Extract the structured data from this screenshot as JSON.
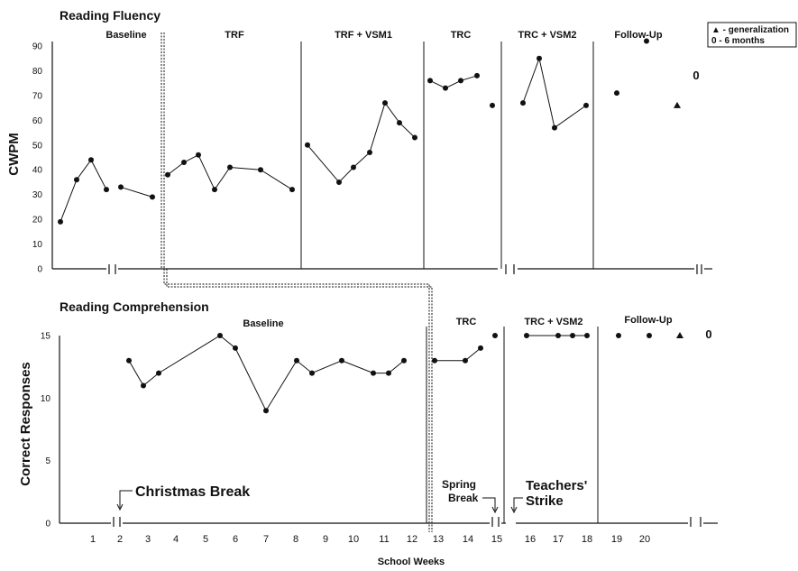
{
  "chart_data": [
    {
      "type": "line",
      "title": "Reading Fluency",
      "ylabel": "CWPM",
      "ylim": [
        0,
        90
      ],
      "yticks": [
        0,
        10,
        20,
        30,
        40,
        50,
        60,
        70,
        80,
        90
      ],
      "phases": [
        "Baseline",
        "TRF",
        "TRF + VSM1",
        "TRC",
        "TRC + VSM2",
        "Follow-Up"
      ],
      "series": [
        {
          "values": [
            19,
            36,
            44,
            32
          ]
        },
        {
          "values": [
            33,
            29
          ]
        },
        {
          "values": [
            38,
            43,
            46,
            32,
            41,
            40,
            32
          ]
        },
        {
          "values": [
            50,
            35,
            41,
            47,
            67,
            59,
            53
          ]
        },
        {
          "values": [
            76,
            73,
            76,
            78
          ]
        },
        {
          "values": [
            66
          ]
        },
        {
          "values": [
            67,
            85,
            57,
            66
          ]
        },
        {
          "values": [
            71
          ]
        },
        {
          "values": [
            92
          ]
        }
      ],
      "generalization": [
        {
          "value": 66
        }
      ],
      "zero_label": "0"
    },
    {
      "type": "line",
      "title": "Reading Comprehension",
      "ylabel": "Correct Responses",
      "xlabel": "School Weeks",
      "ylim": [
        0,
        15
      ],
      "yticks": [
        0,
        5,
        10,
        15
      ],
      "xticks": [
        "1",
        "2",
        "3",
        "4",
        "5",
        "6",
        "7",
        "8",
        "9",
        "10",
        "11",
        "12",
        "13",
        "14",
        "15",
        "16",
        "17",
        "18",
        "19",
        "20"
      ],
      "phases": [
        "Baseline",
        "TRC",
        "TRC + VSM2",
        "Follow-Up"
      ],
      "series": [
        {
          "values": [
            13,
            11,
            12,
            15,
            14,
            9,
            13,
            12,
            13,
            12,
            12,
            13
          ]
        },
        {
          "values": [
            13,
            13,
            14
          ]
        },
        {
          "values": [
            15
          ]
        },
        {
          "values": [
            15,
            15,
            15,
            15
          ]
        },
        {
          "values": [
            15
          ]
        },
        {
          "values": [
            15
          ]
        }
      ],
      "generalization": [
        {
          "value": 15
        }
      ],
      "zero_label": "0"
    }
  ],
  "legend": {
    "line1": "▲ - generalization",
    "line2": "0 - 6 months"
  },
  "annotations": {
    "christmas": "Christmas Break",
    "spring1": "Spring",
    "spring2": "Break",
    "strike1": "Teachers'",
    "strike2": "Strike"
  }
}
